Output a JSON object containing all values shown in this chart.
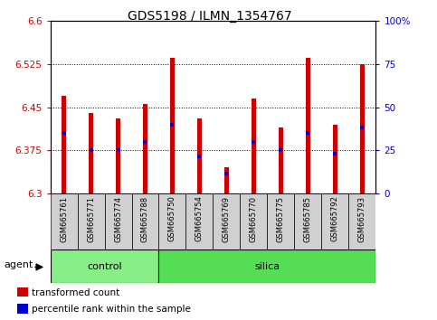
{
  "title": "GDS5198 / ILMN_1354767",
  "samples": [
    "GSM665761",
    "GSM665771",
    "GSM665774",
    "GSM665788",
    "GSM665750",
    "GSM665754",
    "GSM665769",
    "GSM665770",
    "GSM665775",
    "GSM665785",
    "GSM665792",
    "GSM665793"
  ],
  "groups": [
    "control",
    "control",
    "control",
    "control",
    "silica",
    "silica",
    "silica",
    "silica",
    "silica",
    "silica",
    "silica",
    "silica"
  ],
  "bar_values": [
    6.47,
    6.44,
    6.43,
    6.455,
    6.535,
    6.43,
    6.345,
    6.465,
    6.415,
    6.535,
    6.42,
    6.525
  ],
  "bar_base": 6.3,
  "percentile_values": [
    6.405,
    6.375,
    6.375,
    6.39,
    6.42,
    6.365,
    6.335,
    6.39,
    6.375,
    6.405,
    6.37,
    6.415
  ],
  "ylim": [
    6.3,
    6.6
  ],
  "yticks": [
    6.3,
    6.375,
    6.45,
    6.525,
    6.6
  ],
  "ytick_labels": [
    "6.3",
    "6.375",
    "6.45",
    "6.525",
    "6.6"
  ],
  "right_yticks": [
    0,
    25,
    50,
    75,
    100
  ],
  "right_ytick_labels": [
    "0",
    "25",
    "50",
    "75",
    "100%"
  ],
  "bar_color": "#cc0000",
  "percentile_color": "#0000cc",
  "control_color": "#88ee88",
  "silica_color": "#55dd55",
  "tick_bg_color": "#d0d0d0",
  "agent_label": "agent",
  "group_label_control": "control",
  "group_label_silica": "silica",
  "legend_items": [
    "transformed count",
    "percentile rank within the sample"
  ],
  "legend_colors": [
    "#cc0000",
    "#0000cc"
  ],
  "bar_width": 0.15,
  "ctrl_count": 4,
  "n_samples": 12
}
